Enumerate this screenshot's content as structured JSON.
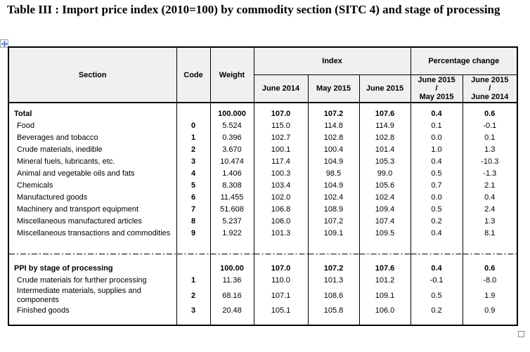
{
  "title": "Table III : Import price index (2010=100) by commodity section (SITC 4) and stage of processing",
  "colors": {
    "header_bg": "#f0f0f0",
    "border": "#000000",
    "move_arrow_blue": "#2a5bd7",
    "resize_border": "#8a8a8a"
  },
  "icons": {
    "move": "move-cross-icon",
    "resize": "resize-square-icon"
  },
  "table": {
    "headers": {
      "section": "Section",
      "code": "Code",
      "weight": "Weight",
      "index_group": "Index",
      "pct_group": "Percentage change",
      "index_cols": [
        "June 2014",
        "May 2015",
        "June 2015"
      ],
      "pct_cols": [
        [
          "June 2015",
          "/",
          "May 2015"
        ],
        [
          "June 2015",
          "/",
          "June 2014"
        ]
      ]
    },
    "sections": [
      {
        "name": "commodity-sections",
        "rows": [
          {
            "section": "Total",
            "code": "",
            "weight": "100.000",
            "jun2014": "107.0",
            "may2015": "107.2",
            "jun2015": "107.6",
            "chg_mom": "0.4",
            "chg_yoy": "0.6",
            "bold": true
          },
          {
            "section": "Food",
            "code": "0",
            "weight": "5.524",
            "jun2014": "115.0",
            "may2015": "114.8",
            "jun2015": "114.9",
            "chg_mom": "0.1",
            "chg_yoy": "-0.1"
          },
          {
            "section": "Beverages and tobacco",
            "code": "1",
            "weight": "0.396",
            "jun2014": "102.7",
            "may2015": "102.8",
            "jun2015": "102.8",
            "chg_mom": "0.0",
            "chg_yoy": "0.1"
          },
          {
            "section": "Crude materials, inedible",
            "code": "2",
            "weight": "3.670",
            "jun2014": "100.1",
            "may2015": "100.4",
            "jun2015": "101.4",
            "chg_mom": "1.0",
            "chg_yoy": "1.3"
          },
          {
            "section": "Mineral fuels, lubricants, etc.",
            "code": "3",
            "weight": "10.474",
            "jun2014": "117.4",
            "may2015": "104.9",
            "jun2015": "105.3",
            "chg_mom": "0.4",
            "chg_yoy": "-10.3"
          },
          {
            "section": "Animal and vegetable oils and fats",
            "code": "4",
            "weight": "1.406",
            "jun2014": "100.3",
            "may2015": "98.5",
            "jun2015": "99.0",
            "chg_mom": "0.5",
            "chg_yoy": "-1.3"
          },
          {
            "section": "Chemicals",
            "code": "5",
            "weight": "8.308",
            "jun2014": "103.4",
            "may2015": "104.9",
            "jun2015": "105.6",
            "chg_mom": "0.7",
            "chg_yoy": "2.1"
          },
          {
            "section": "Manufactured goods",
            "code": "6",
            "weight": "11.455",
            "jun2014": "102.0",
            "may2015": "102.4",
            "jun2015": "102.4",
            "chg_mom": "0.0",
            "chg_yoy": "0.4"
          },
          {
            "section": "Machinery and transport equipment",
            "code": "7",
            "weight": "51.608",
            "jun2014": "106.8",
            "may2015": "108.9",
            "jun2015": "109.4",
            "chg_mom": "0.5",
            "chg_yoy": "2.4"
          },
          {
            "section": "Miscellaneous manufactured articles",
            "code": "8",
            "weight": "5.237",
            "jun2014": "106.0",
            "may2015": "107.2",
            "jun2015": "107.4",
            "chg_mom": "0.2",
            "chg_yoy": "1.3"
          },
          {
            "section": "Miscellaneous transactions and commodities",
            "code": "9",
            "weight": "1.922",
            "jun2014": "101.3",
            "may2015": "109.1",
            "jun2015": "109.5",
            "chg_mom": "0.4",
            "chg_yoy": "8.1"
          }
        ]
      },
      {
        "name": "stage-of-processing",
        "rows": [
          {
            "section": "PPI by stage of processing",
            "code": "",
            "weight": "100.00",
            "jun2014": "107.0",
            "may2015": "107.2",
            "jun2015": "107.6",
            "chg_mom": "0.4",
            "chg_yoy": "0.6",
            "bold": true
          },
          {
            "section": "Crude materials for further processing",
            "code": "1",
            "weight": "11.36",
            "jun2014": "110.0",
            "may2015": "101.3",
            "jun2015": "101.2",
            "chg_mom": "-0.1",
            "chg_yoy": "-8.0"
          },
          {
            "section": "Intermediate materials, supplies and components",
            "code": "2",
            "weight": "68.16",
            "jun2014": "107.1",
            "may2015": "108.6",
            "jun2015": "109.1",
            "chg_mom": "0.5",
            "chg_yoy": "1.9"
          },
          {
            "section": "Finished goods",
            "code": "3",
            "weight": "20.48",
            "jun2014": "105.1",
            "may2015": "105.8",
            "jun2015": "106.0",
            "chg_mom": "0.2",
            "chg_yoy": "0.9"
          }
        ]
      }
    ]
  }
}
